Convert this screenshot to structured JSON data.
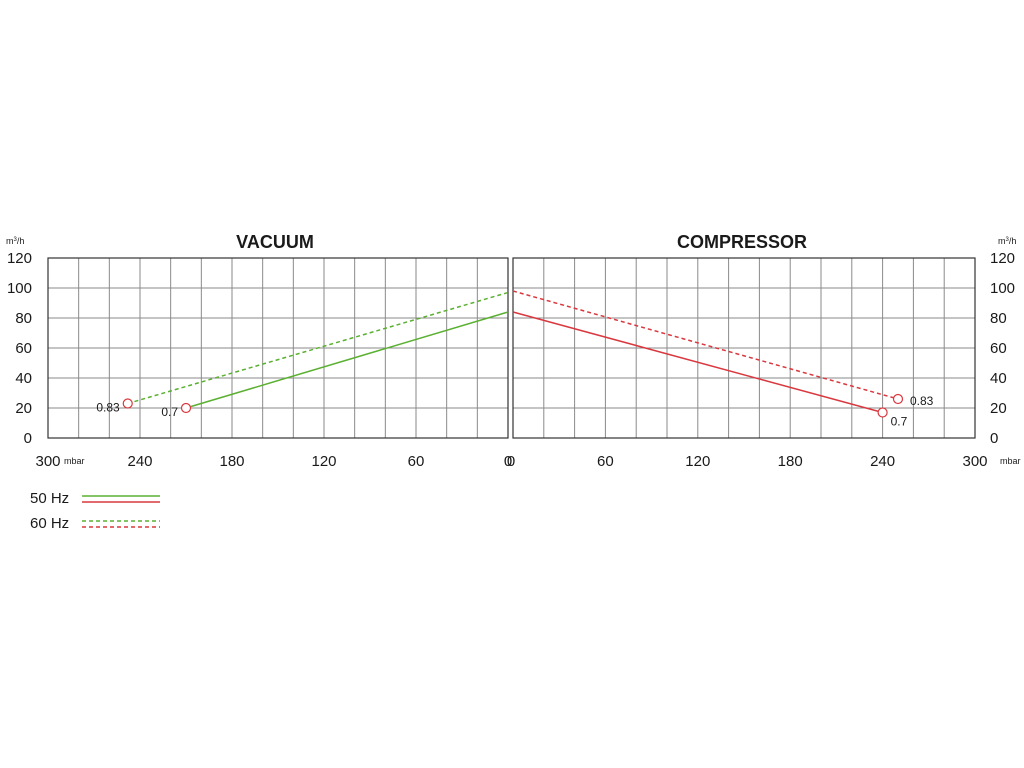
{
  "colors": {
    "vacuum": "#5ab031",
    "compressor": "#d9383f",
    "grid": "#8a8a8a",
    "axis": "#333333",
    "marker": "#d9383f"
  },
  "y_unit": "m3/h",
  "x_unit": "mbar",
  "legend": [
    {
      "label": "50 Hz",
      "style": "solid"
    },
    {
      "label": "60 Hz",
      "style": "dashed"
    }
  ],
  "chart_data": [
    {
      "type": "line",
      "title": "VACUUM",
      "xlabel": "mbar",
      "ylabel": "m3/h",
      "xlim": [
        300,
        0
      ],
      "ylim": [
        0,
        120
      ],
      "x_tick_labels": [
        "300",
        "240",
        "180",
        "120",
        "60",
        "0"
      ],
      "y_tick_labels": [
        "120",
        "100",
        "80",
        "60",
        "40",
        "20",
        "0"
      ],
      "grid": true,
      "series": [
        {
          "name": "50 Hz",
          "style": "solid",
          "color": "#5ab031",
          "x": [
            210,
            0
          ],
          "y": [
            20,
            84
          ]
        },
        {
          "name": "60 Hz",
          "style": "dashed",
          "color": "#5ab031",
          "x": [
            248,
            0
          ],
          "y": [
            23,
            97
          ]
        }
      ],
      "annotations": [
        {
          "text": "0.7",
          "x": 210,
          "y": 20
        },
        {
          "text": "0.83",
          "x": 248,
          "y": 23
        }
      ]
    },
    {
      "type": "line",
      "title": "COMPRESSOR",
      "xlabel": "mbar",
      "ylabel": "m3/h",
      "xlim": [
        0,
        300
      ],
      "ylim": [
        0,
        120
      ],
      "x_tick_labels": [
        "0",
        "60",
        "120",
        "180",
        "240",
        "300"
      ],
      "y_tick_labels": [
        "120",
        "100",
        "80",
        "60",
        "40",
        "20",
        "0"
      ],
      "grid": true,
      "series": [
        {
          "name": "50 Hz",
          "style": "solid",
          "color": "#d9383f",
          "x": [
            0,
            240
          ],
          "y": [
            84,
            17
          ]
        },
        {
          "name": "60 Hz",
          "style": "dashed",
          "color": "#d9383f",
          "x": [
            0,
            250
          ],
          "y": [
            98,
            26
          ]
        }
      ],
      "annotations": [
        {
          "text": "0.7",
          "x": 240,
          "y": 17
        },
        {
          "text": "0.83",
          "x": 250,
          "y": 26
        }
      ]
    }
  ]
}
